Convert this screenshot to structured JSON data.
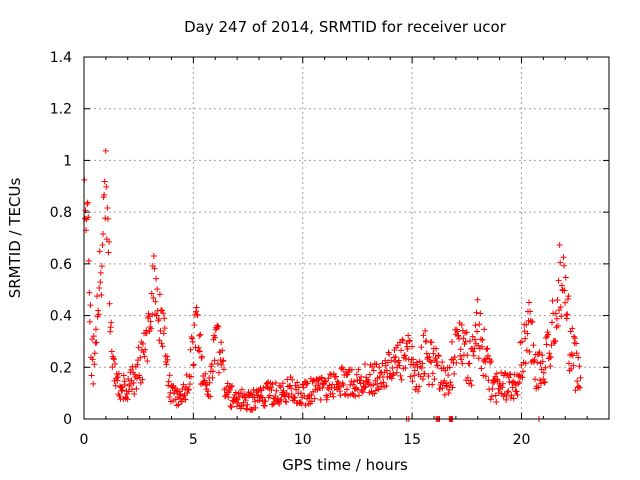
{
  "chart_data": {
    "type": "scatter",
    "title": "Day 247 of 2014, SRMTID for receiver ucor",
    "xlabel": "GPS time / hours",
    "ylabel": "SRMTID / TECUs",
    "xlim": [
      0,
      24
    ],
    "ylim": [
      0,
      1.4
    ],
    "x_ticks": [
      0,
      5,
      10,
      15,
      20
    ],
    "x_tick_labels": [
      "0",
      "5",
      "10",
      "15",
      "20"
    ],
    "y_ticks": [
      0,
      0.2,
      0.4,
      0.6,
      0.8,
      1.0,
      1.2,
      1.4
    ],
    "y_tick_labels": [
      "0",
      "0.2",
      "0.4",
      "0.6",
      "0.8",
      "1",
      "1.2",
      "1.4"
    ],
    "grid": true,
    "marker": "+",
    "series": [
      {
        "name": "SRMTID",
        "color": "#ff0000",
        "profile": {
          "x": [
            0.0,
            0.1,
            0.2,
            0.3,
            0.4,
            0.5,
            0.6,
            0.8,
            0.9,
            1.0,
            1.1,
            1.2,
            1.3,
            1.5,
            1.7,
            2.0,
            2.3,
            2.7,
            3.0,
            3.2,
            3.4,
            3.6,
            3.8,
            4.0,
            4.3,
            4.6,
            4.9,
            5.1,
            5.3,
            5.5,
            5.8,
            6.0,
            6.2,
            6.5,
            7.0,
            7.5,
            8.0,
            8.5,
            9.0,
            9.5,
            10.0,
            10.5,
            11.0,
            11.5,
            12.0,
            12.5,
            13.0,
            13.5,
            14.0,
            14.5,
            14.8,
            15.0,
            15.3,
            15.6,
            15.9,
            16.2,
            16.5,
            16.8,
            17.1,
            17.4,
            17.7,
            18.0,
            18.3,
            18.6,
            19.0,
            19.4,
            19.8,
            20.1,
            20.4,
            20.7,
            21.0,
            21.3,
            21.6,
            21.8,
            22.0,
            22.2,
            22.5,
            22.7
          ],
          "center": [
            0.85,
            0.8,
            0.7,
            0.3,
            0.2,
            0.3,
            0.4,
            0.6,
            0.75,
            1.0,
            0.7,
            0.4,
            0.25,
            0.15,
            0.12,
            0.12,
            0.15,
            0.25,
            0.35,
            0.55,
            0.4,
            0.35,
            0.2,
            0.1,
            0.08,
            0.1,
            0.2,
            0.4,
            0.25,
            0.12,
            0.15,
            0.3,
            0.25,
            0.1,
            0.08,
            0.07,
            0.08,
            0.1,
            0.09,
            0.12,
            0.1,
            0.11,
            0.12,
            0.14,
            0.15,
            0.14,
            0.16,
            0.15,
            0.2,
            0.22,
            0.25,
            0.2,
            0.18,
            0.25,
            0.22,
            0.2,
            0.15,
            0.2,
            0.3,
            0.25,
            0.22,
            0.35,
            0.25,
            0.15,
            0.12,
            0.13,
            0.12,
            0.3,
            0.35,
            0.2,
            0.2,
            0.25,
            0.45,
            0.55,
            0.5,
            0.3,
            0.2,
            0.2
          ],
          "spread": [
            0.1,
            0.1,
            0.15,
            0.15,
            0.1,
            0.1,
            0.1,
            0.15,
            0.2,
            0.2,
            0.2,
            0.1,
            0.08,
            0.05,
            0.05,
            0.05,
            0.07,
            0.1,
            0.12,
            0.12,
            0.1,
            0.1,
            0.1,
            0.04,
            0.03,
            0.04,
            0.1,
            0.12,
            0.1,
            0.06,
            0.08,
            0.1,
            0.1,
            0.05,
            0.04,
            0.04,
            0.04,
            0.05,
            0.05,
            0.05,
            0.05,
            0.05,
            0.05,
            0.05,
            0.06,
            0.06,
            0.06,
            0.06,
            0.07,
            0.08,
            0.1,
            0.08,
            0.08,
            0.1,
            0.1,
            0.08,
            0.07,
            0.1,
            0.12,
            0.1,
            0.1,
            0.12,
            0.1,
            0.08,
            0.06,
            0.06,
            0.06,
            0.12,
            0.12,
            0.1,
            0.08,
            0.12,
            0.15,
            0.18,
            0.15,
            0.12,
            0.1,
            0.08
          ]
        },
        "sampling_interval_hours": 0.025,
        "zero_markers_x": [
          14.75,
          14.85,
          16.1,
          16.15,
          16.2,
          16.25,
          16.7,
          16.75,
          16.8,
          16.85,
          20.8
        ]
      }
    ]
  }
}
